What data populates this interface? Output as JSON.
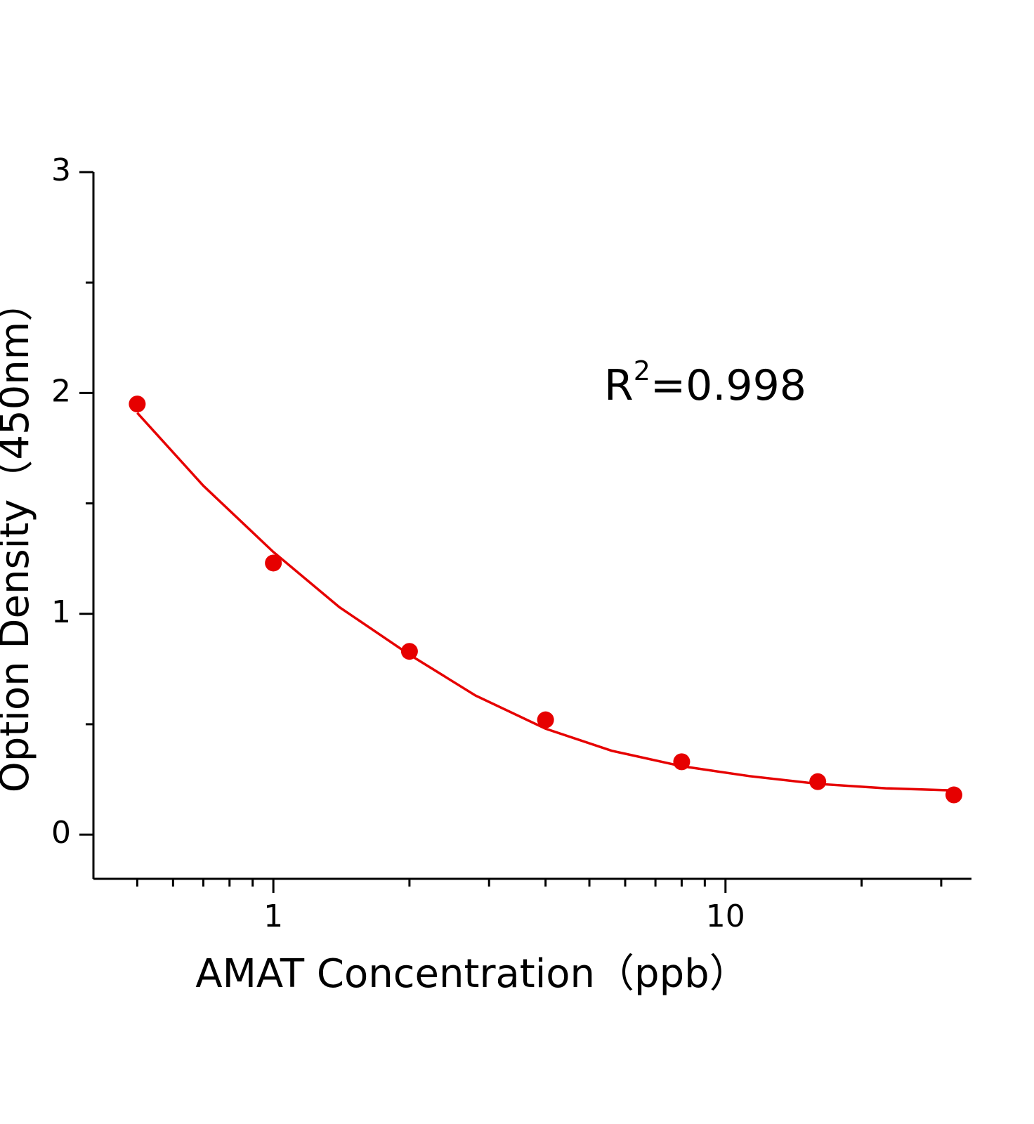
{
  "chart_data": {
    "type": "scatter",
    "xlabel": "AMAT Concentration（ppb）",
    "ylabel": "Option Density（450nm）",
    "annotation": [
      "R",
      "2",
      "=0.998"
    ],
    "xscale": "log",
    "xlim": [
      0.4,
      35
    ],
    "xticks": [
      1,
      10
    ],
    "xminorticks": [
      0.5,
      0.6,
      0.7,
      0.8,
      0.9,
      2,
      3,
      4,
      5,
      6,
      7,
      8,
      9,
      20,
      30
    ],
    "ylim": [
      -0.2,
      3
    ],
    "yticks": [
      0,
      1,
      2,
      3
    ],
    "yminorticks": [
      0.5,
      1.5,
      2.5
    ],
    "points": {
      "color": "#e60000",
      "x": [
        0.5,
        1,
        2,
        4,
        8,
        16,
        32
      ],
      "values": [
        1.95,
        1.23,
        0.83,
        0.52,
        0.33,
        0.24,
        0.18
      ]
    },
    "fit": {
      "color": "#e60000",
      "x": [
        0.5,
        0.7,
        1,
        1.4,
        2,
        2.8,
        4,
        5.6,
        8,
        11.3,
        16,
        22.6,
        32
      ],
      "values": [
        1.91,
        1.58,
        1.28,
        1.03,
        0.815,
        0.63,
        0.48,
        0.38,
        0.31,
        0.265,
        0.23,
        0.21,
        0.2
      ]
    }
  }
}
